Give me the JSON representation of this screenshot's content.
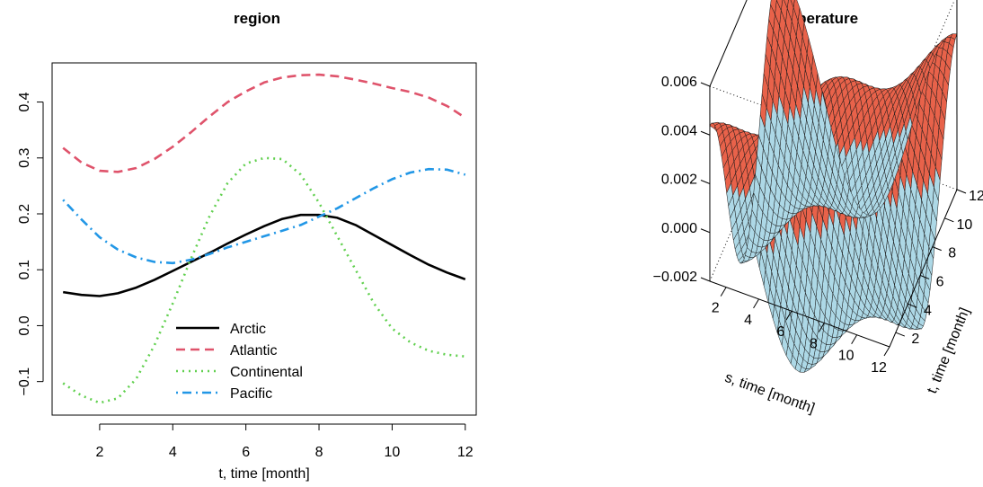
{
  "chart_data": [
    {
      "type": "line",
      "title": "region",
      "xlabel": "t, time [month]",
      "ylabel": "",
      "xlim": [
        0.7,
        12.3
      ],
      "ylim": [
        -0.16,
        0.47
      ],
      "xticks": [
        2,
        4,
        6,
        8,
        10,
        12
      ],
      "yticks": [
        -0.1,
        0.0,
        0.1,
        0.2,
        0.3,
        0.4
      ],
      "ytick_labels": [
        "−0.1",
        "0.0",
        "0.1",
        "0.2",
        "0.3",
        "0.4"
      ],
      "legend_position": "bottom-center",
      "x": [
        1,
        1.5,
        2,
        2.5,
        3,
        3.5,
        4,
        4.5,
        5,
        5.5,
        6,
        6.5,
        7,
        7.5,
        8,
        8.5,
        9,
        9.5,
        10,
        10.5,
        11,
        11.5,
        12
      ],
      "series": [
        {
          "name": "Arctic",
          "color": "#000000",
          "dash": "solid",
          "values": [
            0.06,
            0.055,
            0.053,
            0.058,
            0.068,
            0.082,
            0.098,
            0.114,
            0.13,
            0.147,
            0.163,
            0.178,
            0.191,
            0.198,
            0.198,
            0.193,
            0.18,
            0.162,
            0.144,
            0.126,
            0.109,
            0.095,
            0.083
          ]
        },
        {
          "name": "Atlantic",
          "color": "#DF536B",
          "dash": "dashed",
          "values": [
            0.318,
            0.292,
            0.277,
            0.275,
            0.282,
            0.298,
            0.32,
            0.346,
            0.374,
            0.4,
            0.419,
            0.435,
            0.444,
            0.448,
            0.449,
            0.446,
            0.44,
            0.433,
            0.425,
            0.418,
            0.408,
            0.393,
            0.372
          ]
        },
        {
          "name": "Continental",
          "color": "#61D04F",
          "dash": "dotted",
          "values": [
            -0.103,
            -0.125,
            -0.138,
            -0.13,
            -0.095,
            -0.035,
            0.04,
            0.12,
            0.195,
            0.255,
            0.29,
            0.3,
            0.298,
            0.27,
            0.22,
            0.16,
            0.1,
            0.04,
            -0.005,
            -0.03,
            -0.045,
            -0.052,
            -0.055
          ]
        },
        {
          "name": "Pacific",
          "color": "#2297E6",
          "dash": "dashdot",
          "values": [
            0.225,
            0.19,
            0.158,
            0.136,
            0.122,
            0.114,
            0.112,
            0.118,
            0.128,
            0.14,
            0.15,
            0.16,
            0.17,
            0.18,
            0.195,
            0.21,
            0.228,
            0.246,
            0.262,
            0.274,
            0.28,
            0.279,
            0.27
          ]
        }
      ]
    },
    {
      "type": "surface3d",
      "title": "temperature",
      "xlabel": "s, time [month]",
      "ylabel": "t, time [month]",
      "zlim": [
        -0.002,
        0.006
      ],
      "zticks": [
        "0.006",
        "0.004",
        "0.002",
        "0.000",
        "−0.002"
      ],
      "s_ticks": [
        "2",
        "4",
        "6",
        "8",
        "10",
        "12"
      ],
      "t_ticks": [
        "2",
        "4",
        "6",
        "8",
        "10",
        "12"
      ],
      "colors": {
        "positive": "#E8624A",
        "negative": "#ADD8E6",
        "mesh": "#1a1a1a"
      }
    }
  ]
}
